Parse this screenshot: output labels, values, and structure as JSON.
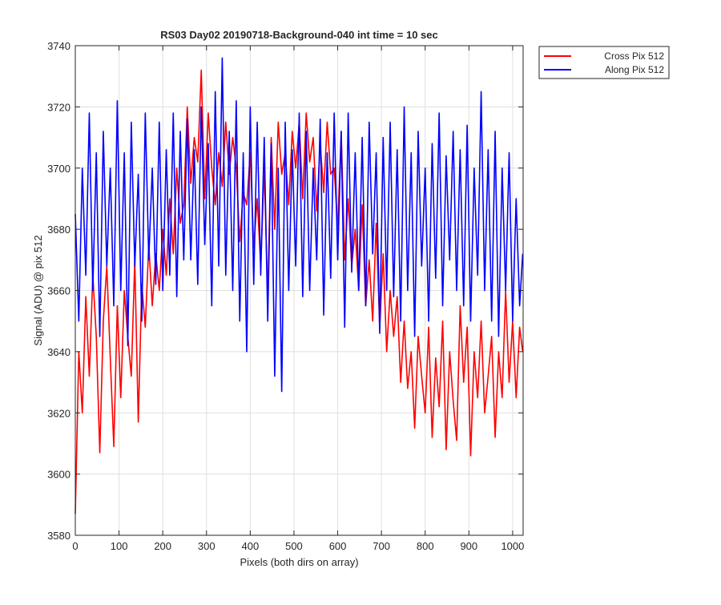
{
  "chart_data": {
    "type": "line",
    "title": "RS03 Day02 20190718-Background-040 int time = 10 sec",
    "xlabel": "Pixels (both dirs on array)",
    "ylabel": "Signal (ADU) @ pix 512",
    "xlim": [
      0,
      1024
    ],
    "ylim": [
      3580,
      3740
    ],
    "xticks": [
      0,
      100,
      200,
      300,
      400,
      500,
      600,
      700,
      800,
      900,
      1000
    ],
    "yticks": [
      3580,
      3600,
      3620,
      3640,
      3660,
      3680,
      3700,
      3720,
      3740
    ],
    "grid": true,
    "legend_position": "outside-top-right",
    "series": [
      {
        "name": "Cross Pix 512",
        "color": "#ff0000",
        "x_step": 8,
        "x": [
          0,
          8,
          16,
          24,
          32,
          40,
          48,
          56,
          64,
          72,
          80,
          88,
          96,
          104,
          112,
          120,
          128,
          136,
          144,
          152,
          160,
          168,
          176,
          184,
          192,
          200,
          208,
          216,
          224,
          232,
          240,
          248,
          256,
          264,
          272,
          280,
          288,
          296,
          304,
          312,
          320,
          328,
          336,
          344,
          352,
          360,
          368,
          376,
          384,
          392,
          400,
          408,
          416,
          424,
          432,
          440,
          448,
          456,
          464,
          472,
          480,
          488,
          496,
          504,
          512,
          520,
          528,
          536,
          544,
          552,
          560,
          568,
          576,
          584,
          592,
          600,
          608,
          616,
          624,
          632,
          640,
          648,
          656,
          664,
          672,
          680,
          688,
          696,
          704,
          712,
          720,
          728,
          736,
          744,
          752,
          760,
          768,
          776,
          784,
          792,
          800,
          808,
          816,
          824,
          832,
          840,
          848,
          856,
          864,
          872,
          880,
          888,
          896,
          904,
          912,
          920,
          928,
          936,
          944,
          952,
          960,
          968,
          976,
          984,
          992,
          1000,
          1008,
          1016,
          1023
        ],
        "values": [
          3587,
          3640,
          3620,
          3658,
          3632,
          3665,
          3645,
          3607,
          3650,
          3668,
          3638,
          3609,
          3655,
          3625,
          3660,
          3645,
          3632,
          3670,
          3617,
          3662,
          3648,
          3675,
          3655,
          3672,
          3660,
          3680,
          3665,
          3690,
          3672,
          3700,
          3682,
          3688,
          3720,
          3695,
          3710,
          3702,
          3732,
          3690,
          3718,
          3700,
          3688,
          3705,
          3694,
          3715,
          3698,
          3710,
          3700,
          3676,
          3692,
          3688,
          3705,
          3674,
          3690,
          3668,
          3700,
          3658,
          3710,
          3680,
          3715,
          3698,
          3705,
          3688,
          3712,
          3700,
          3715,
          3690,
          3718,
          3702,
          3710,
          3686,
          3708,
          3692,
          3715,
          3698,
          3700,
          3680,
          3712,
          3670,
          3690,
          3668,
          3680,
          3660,
          3688,
          3655,
          3670,
          3650,
          3682,
          3648,
          3672,
          3640,
          3660,
          3645,
          3658,
          3630,
          3650,
          3628,
          3640,
          3615,
          3645,
          3632,
          3620,
          3648,
          3612,
          3638,
          3622,
          3650,
          3608,
          3640,
          3624,
          3611,
          3655,
          3630,
          3648,
          3606,
          3640,
          3625,
          3650,
          3620,
          3632,
          3645,
          3612,
          3640,
          3625,
          3660,
          3630,
          3650,
          3625,
          3648,
          3640
        ]
      },
      {
        "name": "Along Pix 512",
        "color": "#0000ff",
        "x_step": 8,
        "x": [
          0,
          8,
          16,
          24,
          32,
          40,
          48,
          56,
          64,
          72,
          80,
          88,
          96,
          104,
          112,
          120,
          128,
          136,
          144,
          152,
          160,
          168,
          176,
          184,
          192,
          200,
          208,
          216,
          224,
          232,
          240,
          248,
          256,
          264,
          272,
          280,
          288,
          296,
          304,
          312,
          320,
          328,
          336,
          344,
          352,
          360,
          368,
          376,
          384,
          392,
          400,
          408,
          416,
          424,
          432,
          440,
          448,
          456,
          464,
          472,
          480,
          488,
          496,
          504,
          512,
          520,
          528,
          536,
          544,
          552,
          560,
          568,
          576,
          584,
          592,
          600,
          608,
          616,
          624,
          632,
          640,
          648,
          656,
          664,
          672,
          680,
          688,
          696,
          704,
          712,
          720,
          728,
          736,
          744,
          752,
          760,
          768,
          776,
          784,
          792,
          800,
          808,
          816,
          824,
          832,
          840,
          848,
          856,
          864,
          872,
          880,
          888,
          896,
          904,
          912,
          920,
          928,
          936,
          944,
          952,
          960,
          968,
          976,
          984,
          992,
          1000,
          1008,
          1016,
          1023
        ],
        "values": [
          3685,
          3650,
          3700,
          3665,
          3718,
          3660,
          3705,
          3645,
          3712,
          3668,
          3700,
          3655,
          3722,
          3660,
          3705,
          3642,
          3715,
          3668,
          3698,
          3650,
          3718,
          3670,
          3700,
          3662,
          3715,
          3660,
          3706,
          3665,
          3718,
          3658,
          3712,
          3670,
          3716,
          3670,
          3706,
          3662,
          3720,
          3675,
          3708,
          3655,
          3725,
          3668,
          3736,
          3665,
          3712,
          3660,
          3722,
          3650,
          3705,
          3640,
          3720,
          3662,
          3715,
          3665,
          3710,
          3650,
          3708,
          3632,
          3700,
          3627,
          3715,
          3660,
          3706,
          3668,
          3718,
          3658,
          3712,
          3660,
          3700,
          3670,
          3716,
          3652,
          3705,
          3664,
          3718,
          3670,
          3712,
          3648,
          3718,
          3666,
          3705,
          3660,
          3710,
          3655,
          3715,
          3672,
          3705,
          3646,
          3710,
          3660,
          3715,
          3658,
          3706,
          3650,
          3720,
          3660,
          3705,
          3645,
          3712,
          3668,
          3700,
          3650,
          3708,
          3664,
          3718,
          3655,
          3704,
          3670,
          3712,
          3660,
          3706,
          3655,
          3714,
          3650,
          3700,
          3665,
          3725,
          3660,
          3706,
          3650,
          3712,
          3645,
          3700,
          3660,
          3705,
          3650,
          3690,
          3655,
          3672
        ]
      }
    ]
  }
}
